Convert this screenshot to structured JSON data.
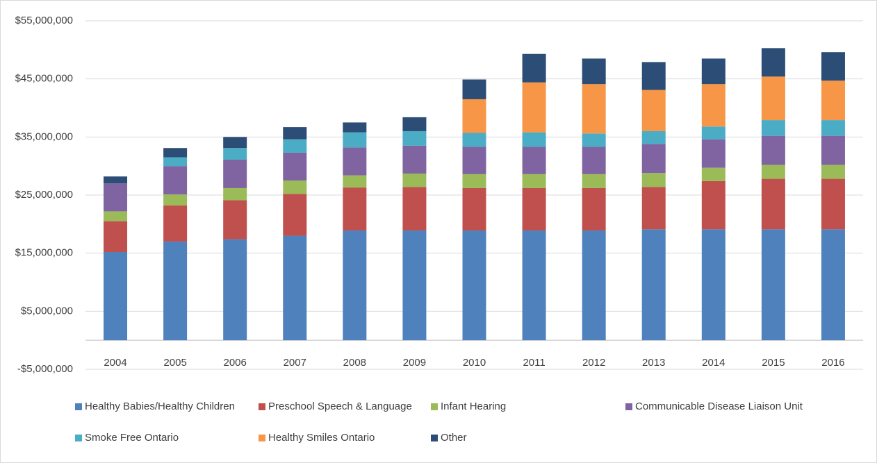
{
  "chart_data": {
    "type": "stacked_bar",
    "categories": [
      "2004",
      "2005",
      "2006",
      "2007",
      "2008",
      "2009",
      "2010",
      "2011",
      "2012",
      "2013",
      "2014",
      "2015",
      "2016"
    ],
    "series": [
      {
        "name": "Healthy Babies/Healthy Children",
        "color": "#4f81bd",
        "values": [
          15200000,
          17000000,
          17400000,
          18000000,
          18900000,
          18900000,
          18900000,
          18900000,
          18900000,
          19100000,
          19100000,
          19100000,
          19100000
        ]
      },
      {
        "name": "Preschool Speech & Language",
        "color": "#c0504d",
        "values": [
          5300000,
          6200000,
          6700000,
          7200000,
          7400000,
          7500000,
          7300000,
          7300000,
          7300000,
          7300000,
          8300000,
          8700000,
          8700000
        ]
      },
      {
        "name": "Infant Hearing",
        "color": "#9bbb59",
        "values": [
          1700000,
          1900000,
          2100000,
          2300000,
          2100000,
          2300000,
          2400000,
          2400000,
          2400000,
          2400000,
          2300000,
          2400000,
          2400000
        ]
      },
      {
        "name": "Communicable Disease Liaison Unit",
        "color": "#8064a2",
        "values": [
          4800000,
          4900000,
          4900000,
          4800000,
          4800000,
          4800000,
          4700000,
          4700000,
          4700000,
          5000000,
          4900000,
          5000000,
          5000000
        ]
      },
      {
        "name": "Smoke Free Ontario",
        "color": "#4bacc6",
        "values": [
          0,
          1500000,
          2000000,
          2300000,
          2600000,
          2500000,
          2400000,
          2500000,
          2300000,
          2200000,
          2200000,
          2700000,
          2700000
        ]
      },
      {
        "name": "Healthy Smiles Ontario",
        "color": "#f79646",
        "values": [
          0,
          0,
          0,
          0,
          0,
          0,
          5800000,
          8600000,
          8500000,
          7100000,
          7300000,
          7500000,
          6800000
        ]
      },
      {
        "name": "Other",
        "color": "#2c4d75",
        "values": [
          1200000,
          1600000,
          1900000,
          2100000,
          1700000,
          2400000,
          3400000,
          4900000,
          4400000,
          4800000,
          4400000,
          4900000,
          4900000
        ]
      }
    ],
    "ylim": [
      -5000000,
      55000000
    ],
    "yticks": [
      {
        "value": -5000000,
        "label": "-$5,000,000"
      },
      {
        "value": 5000000,
        "label": "$5,000,000"
      },
      {
        "value": 15000000,
        "label": "$15,000,000"
      },
      {
        "value": 25000000,
        "label": "$25,000,000"
      },
      {
        "value": 35000000,
        "label": "$35,000,000"
      },
      {
        "value": 45000000,
        "label": "$45,000,000"
      },
      {
        "value": 55000000,
        "label": "$55,000,000"
      }
    ],
    "grid": true
  }
}
